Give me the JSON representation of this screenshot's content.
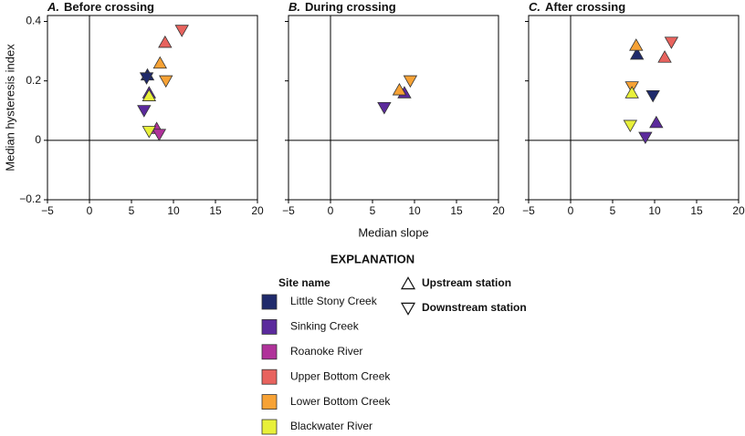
{
  "chart_data": [
    {
      "type": "scatter",
      "label": "A.",
      "title": "Before crossing",
      "ylabel": "Median hysteresis index",
      "xlim": [
        -5,
        20
      ],
      "ylim": [
        -0.2,
        0.42
      ],
      "xticks": [
        {
          "value": -5,
          "label": "−5"
        },
        0,
        5,
        10,
        15,
        20
      ],
      "yticks": [
        {
          "value": -0.2,
          "label": "−0.2"
        },
        0,
        0.2,
        0.4
      ],
      "series": [
        {
          "name": "Little Stony Creek",
          "color": "#1f2a6b",
          "x": [
            6.9,
            6.8
          ],
          "values": [
            0.22,
            0.21
          ],
          "markers": [
            "up",
            "down"
          ]
        },
        {
          "name": "Sinking Creek",
          "color": "#5b2a9c",
          "x": [
            7.1,
            6.5
          ],
          "values": [
            0.16,
            0.1
          ],
          "markers": [
            "up",
            "down"
          ]
        },
        {
          "name": "Roanoke River",
          "color": "#b0329a",
          "x": [
            8.0,
            8.3
          ],
          "values": [
            0.04,
            0.02
          ],
          "markers": [
            "up",
            "down"
          ]
        },
        {
          "name": "Upper Bottom Creek",
          "color": "#e8635e",
          "x": [
            9.0,
            11.0
          ],
          "values": [
            0.33,
            0.37
          ],
          "markers": [
            "up",
            "down"
          ]
        },
        {
          "name": "Lower Bottom Creek",
          "color": "#f7a235",
          "x": [
            8.4,
            9.1
          ],
          "values": [
            0.26,
            0.2
          ],
          "markers": [
            "up",
            "down"
          ]
        },
        {
          "name": "Blackwater River",
          "color": "#e8f03a",
          "x": [
            7.1,
            7.1
          ],
          "values": [
            0.15,
            0.03
          ],
          "markers": [
            "up",
            "down"
          ]
        }
      ]
    },
    {
      "type": "scatter",
      "label": "B.",
      "title": "During crossing",
      "xlabel": "Median slope",
      "xlim": [
        -5,
        20
      ],
      "ylim": [
        -0.2,
        0.42
      ],
      "xticks": [
        {
          "value": -5,
          "label": "−5"
        },
        0,
        5,
        10,
        15,
        20
      ],
      "yticks": [
        -0.2,
        0,
        0.2,
        0.4
      ],
      "series": [
        {
          "color": "#5b2a9c",
          "x": [
            8.8,
            6.4
          ],
          "values": [
            0.16,
            0.11
          ],
          "markers": [
            "up",
            "down"
          ]
        },
        {
          "color": "#f7a235",
          "x": [
            8.2,
            9.5
          ],
          "values": [
            0.17,
            0.2
          ],
          "markers": [
            "up",
            "down"
          ]
        }
      ]
    },
    {
      "type": "scatter",
      "label": "C.",
      "title": "After crossing",
      "xlim": [
        -5,
        20
      ],
      "ylim": [
        -0.2,
        0.42
      ],
      "xticks": [
        {
          "value": -5,
          "label": "−5"
        },
        0,
        5,
        10,
        15,
        20
      ],
      "yticks": [
        -0.2,
        0,
        0.2,
        0.4
      ],
      "series": [
        {
          "color": "#1f2a6b",
          "x": [
            7.9,
            9.8
          ],
          "values": [
            0.29,
            0.15
          ],
          "markers": [
            "up",
            "down"
          ]
        },
        {
          "color": "#5b2a9c",
          "x": [
            10.2,
            8.9
          ],
          "values": [
            0.06,
            0.01
          ],
          "markers": [
            "up",
            "down"
          ]
        },
        {
          "color": "#e8635e",
          "x": [
            11.2,
            12.0
          ],
          "values": [
            0.28,
            0.33
          ],
          "markers": [
            "up",
            "down"
          ]
        },
        {
          "color": "#f7a235",
          "x": [
            7.8,
            7.3
          ],
          "values": [
            0.32,
            0.18
          ],
          "markers": [
            "up",
            "down"
          ]
        },
        {
          "color": "#e8f03a",
          "x": [
            7.3,
            7.1
          ],
          "values": [
            0.16,
            0.05
          ],
          "markers": [
            "up",
            "down"
          ]
        }
      ]
    }
  ],
  "explanation": {
    "title": "EXPLANATION",
    "site_heading": "Site name",
    "stations": [
      {
        "label": "Upstream station",
        "marker": "up"
      },
      {
        "label": "Downstream station",
        "marker": "down"
      }
    ]
  }
}
